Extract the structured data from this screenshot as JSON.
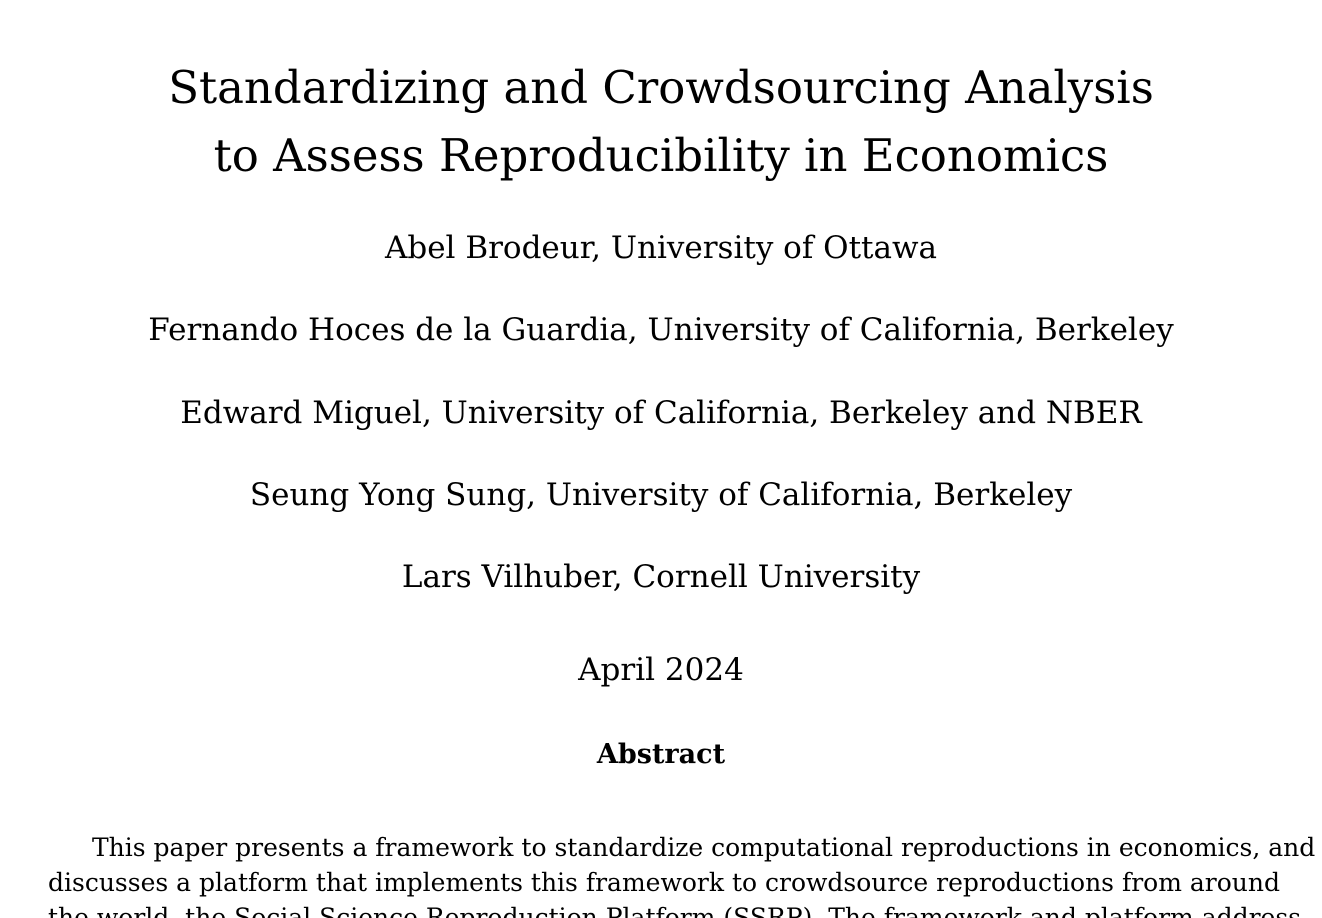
{
  "paper": {
    "title_line1": "Standardizing and Crowdsourcing Analysis",
    "title_line2": "to Assess Reproducibility in Economics",
    "authors": [
      "Abel Brodeur, University of Ottawa",
      "Fernando Hoces de la Guardia, University of California, Berkeley",
      "Edward Miguel, University of California, Berkeley and NBER",
      "Seung Yong Sung, University of California, Berkeley",
      "Lars Vilhuber, Cornell University"
    ],
    "date": "April 2024",
    "abstract_heading": "Abstract",
    "abstract_lines": [
      "This paper presents a framework to standardize computational reproductions in economics, and",
      "discusses a platform that implements this framework to crowdsource reproductions from around",
      "the world, the Social Science Reproduction Platform (SSRP). The framework and platform address"
    ]
  }
}
